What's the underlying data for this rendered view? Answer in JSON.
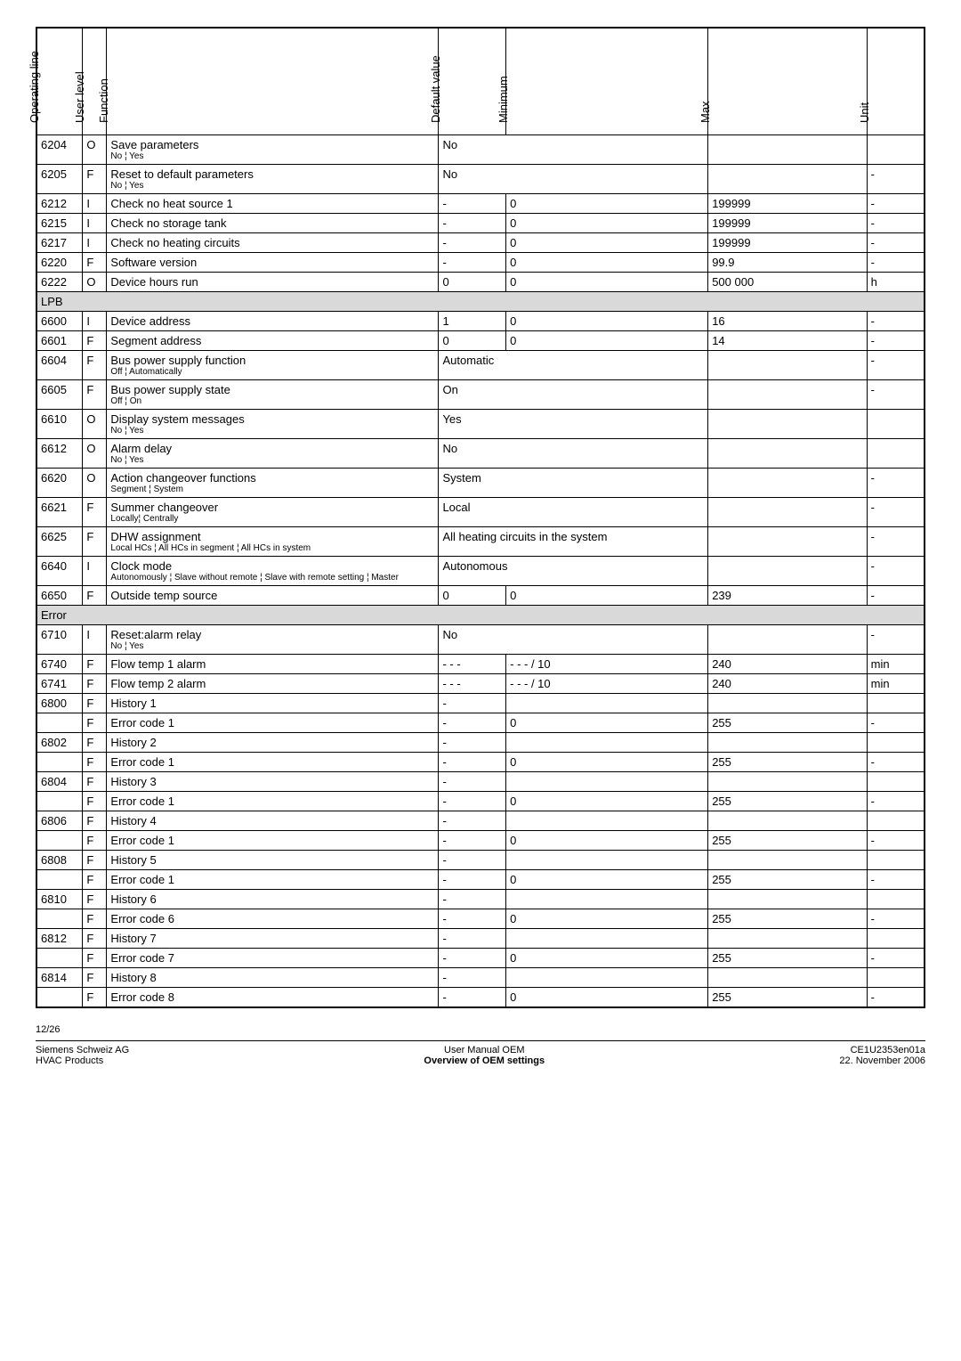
{
  "headers": {
    "operating_line": "Operating line",
    "user_level": "User level",
    "function": "Function",
    "default_value": "Default value",
    "minimum": "Minimum",
    "max": "Max",
    "unit": "Unit"
  },
  "rows": [
    {
      "op": "6204",
      "ul": "O",
      "fn": "Save parameters",
      "sub": "No ¦ Yes",
      "def": "No",
      "span": 3,
      "max": "",
      "unit": ""
    },
    {
      "op": "6205",
      "ul": "F",
      "fn": "Reset to default parameters",
      "sub": "No ¦ Yes",
      "def": "No",
      "span": 3,
      "max": "",
      "unit": "-"
    },
    {
      "op": "6212",
      "ul": "I",
      "fn": "Check no heat source 1",
      "def": "-",
      "min": "0",
      "max": "199999",
      "unit": "-"
    },
    {
      "op": "6215",
      "ul": "I",
      "fn": "Check no storage tank",
      "def": "-",
      "min": "0",
      "max": "199999",
      "unit": "-"
    },
    {
      "op": "6217",
      "ul": "I",
      "fn": "Check no heating circuits",
      "def": "-",
      "min": "0",
      "max": "199999",
      "unit": "-"
    },
    {
      "op": "6220",
      "ul": "F",
      "fn": "Software version",
      "def": "-",
      "min": "0",
      "max": "99.9",
      "unit": "-"
    },
    {
      "op": "6222",
      "ul": "O",
      "fn": "Device hours run",
      "def": "0",
      "min": "0",
      "max": "500 000",
      "unit": "h"
    },
    {
      "section": "LPB"
    },
    {
      "op": "6600",
      "ul": "I",
      "fn": "Device address",
      "def": "1",
      "min": "0",
      "max": "16",
      "unit": "-"
    },
    {
      "op": "6601",
      "ul": "F",
      "fn": "Segment address",
      "def": "0",
      "min": "0",
      "max": "14",
      "unit": "-"
    },
    {
      "op": "6604",
      "ul": "F",
      "fn": "Bus power supply function",
      "sub": "Off ¦ Automatically",
      "def": "Automatic",
      "span": 3,
      "max": "",
      "unit": "-"
    },
    {
      "op": "6605",
      "ul": "F",
      "fn": "Bus power supply state",
      "sub": "Off ¦ On",
      "def": "On",
      "span": 3,
      "max": "",
      "unit": "-"
    },
    {
      "op": "6610",
      "ul": "O",
      "fn": "Display system messages",
      "sub": "No ¦ Yes",
      "def": "Yes",
      "span": 3,
      "max": "",
      "unit": ""
    },
    {
      "op": "6612",
      "ul": "O",
      "fn": "Alarm delay",
      "sub": "No ¦ Yes",
      "def": "No",
      "span": 3,
      "max": "",
      "unit": ""
    },
    {
      "op": "6620",
      "ul": "O",
      "fn": "Action changeover functions",
      "sub": "Segment ¦ System",
      "def": "System",
      "span": 3,
      "max": "",
      "unit": "-"
    },
    {
      "op": "6621",
      "ul": "F",
      "fn": "Summer changeover",
      "sub": "Locally¦ Centrally",
      "def": "Local",
      "span": 3,
      "max": "",
      "unit": "-"
    },
    {
      "op": "6625",
      "ul": "F",
      "fn": "DHW assignment",
      "sub": "Local HCs ¦ All HCs in segment ¦ All HCs in system",
      "def": "All heating circuits in the system",
      "span": 3,
      "max": "",
      "unit": "-"
    },
    {
      "op": "6640",
      "ul": "I",
      "fn": "Clock mode",
      "sub": "Autonomously ¦ Slave without remote ¦ Slave with remote setting ¦ Master",
      "def": "Autonomous",
      "span": 3,
      "max": "",
      "unit": "-"
    },
    {
      "op": "6650",
      "ul": "F",
      "fn": "Outside temp source",
      "def": "0",
      "min": "0",
      "max": "239",
      "unit": "-"
    },
    {
      "section": "Error"
    },
    {
      "op": "6710",
      "ul": "I",
      "fn": "Reset:alarm relay",
      "sub": "No ¦ Yes",
      "def": "No",
      "span": 3,
      "max": "",
      "unit": "-"
    },
    {
      "op": "6740",
      "ul": "F",
      "fn": "Flow temp 1 alarm",
      "def": "- - -",
      "min": "- - - / 10",
      "max": "240",
      "unit": "min"
    },
    {
      "op": "6741",
      "ul": "F",
      "fn": "Flow temp 2 alarm",
      "def": "- - -",
      "min": "- - - / 10",
      "max": "240",
      "unit": "min"
    },
    {
      "op": "6800",
      "ul": "F",
      "fn": "History 1",
      "def": "-",
      "min": "",
      "max": "",
      "unit": ""
    },
    {
      "op": "",
      "ul": "F",
      "fn": "Error code 1",
      "def": "-",
      "min": "0",
      "max": "255",
      "unit": "-"
    },
    {
      "op": "6802",
      "ul": "F",
      "fn": "History 2",
      "def": "-",
      "min": "",
      "max": "",
      "unit": ""
    },
    {
      "op": "",
      "ul": "F",
      "fn": "Error code 1",
      "def": "-",
      "min": "0",
      "max": "255",
      "unit": "-"
    },
    {
      "op": "6804",
      "ul": "F",
      "fn": "History 3",
      "def": "-",
      "min": "",
      "max": "",
      "unit": ""
    },
    {
      "op": "",
      "ul": "F",
      "fn": "Error code 1",
      "def": "-",
      "min": "0",
      "max": "255",
      "unit": "-"
    },
    {
      "op": "6806",
      "ul": "F",
      "fn": "History 4",
      "def": "-",
      "min": "",
      "max": "",
      "unit": ""
    },
    {
      "op": "",
      "ul": "F",
      "fn": "Error code 1",
      "def": "-",
      "min": "0",
      "max": "255",
      "unit": "-"
    },
    {
      "op": "6808",
      "ul": "F",
      "fn": "History 5",
      "def": "-",
      "min": "",
      "max": "",
      "unit": ""
    },
    {
      "op": "",
      "ul": "F",
      "fn": "Error code 1",
      "def": "-",
      "min": "0",
      "max": "255",
      "unit": "-"
    },
    {
      "op": "6810",
      "ul": "F",
      "fn": "History 6",
      "def": "-",
      "min": "",
      "max": "",
      "unit": ""
    },
    {
      "op": "",
      "ul": "F",
      "fn": "Error code 6",
      "def": "-",
      "min": "0",
      "max": "255",
      "unit": "-"
    },
    {
      "op": "6812",
      "ul": "F",
      "fn": "History 7",
      "def": "-",
      "min": "",
      "max": "",
      "unit": ""
    },
    {
      "op": "",
      "ul": "F",
      "fn": "Error code 7",
      "def": "-",
      "min": "0",
      "max": "255",
      "unit": "-"
    },
    {
      "op": "6814",
      "ul": "F",
      "fn": "History 8",
      "def": "-",
      "min": "",
      "max": "",
      "unit": ""
    },
    {
      "op": "",
      "ul": "F",
      "fn": "Error code 8",
      "def": "-",
      "min": "0",
      "max": "255",
      "unit": "-"
    }
  ],
  "footer": {
    "page": "12/26",
    "left1": "Siemens Schweiz AG",
    "left2": "HVAC Products",
    "center1": "User Manual OEM",
    "center2": "Overview of OEM settings",
    "right1": "CE1U2353en01a",
    "right2": "22. November 2006"
  }
}
